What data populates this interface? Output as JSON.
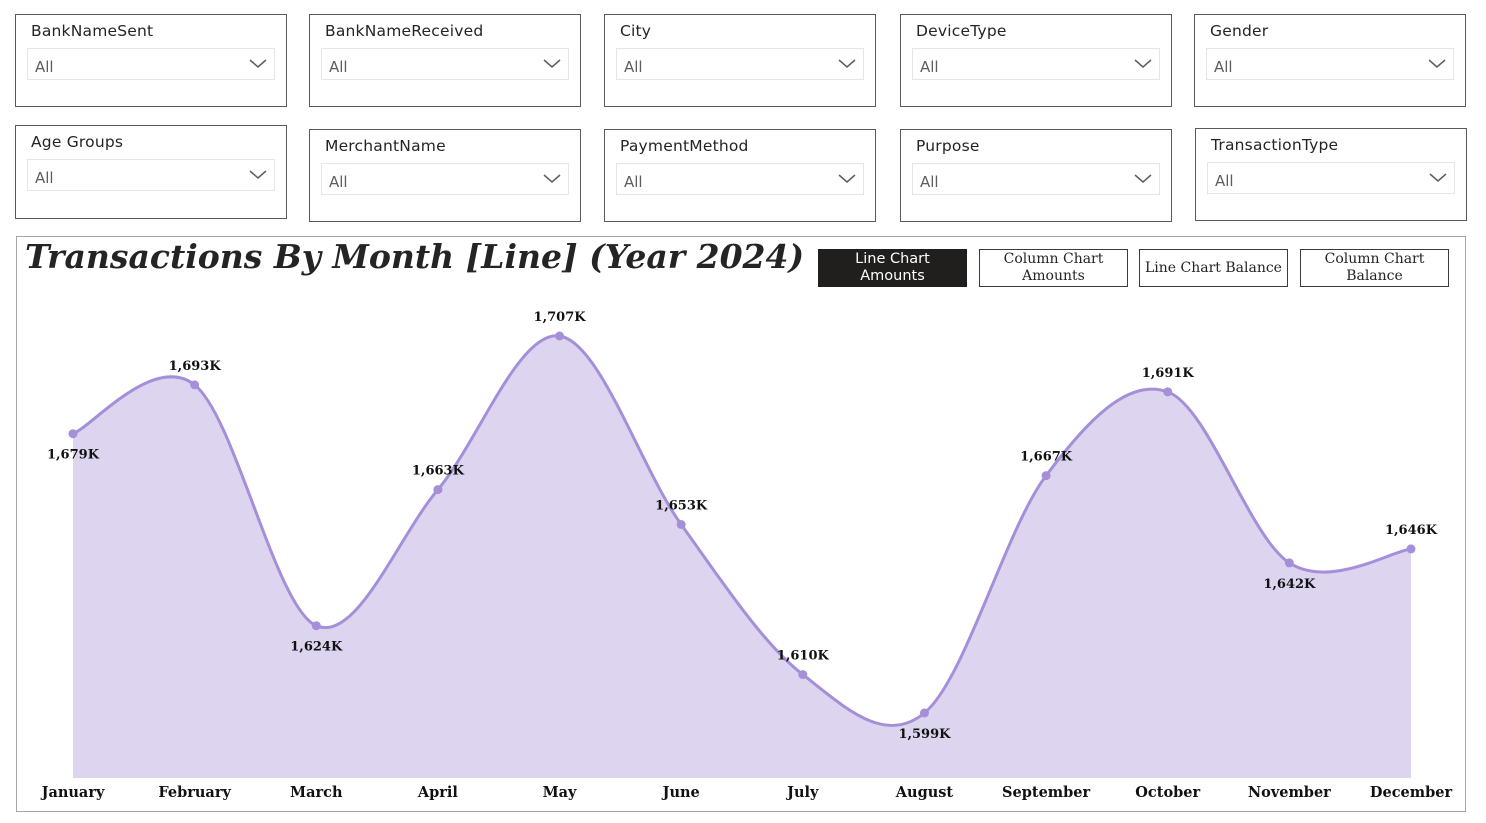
{
  "filters": {
    "row1": [
      {
        "id": "bank-name-sent",
        "title": "BankNameSent",
        "value": "All"
      },
      {
        "id": "bank-name-received",
        "title": "BankNameReceived",
        "value": "All"
      },
      {
        "id": "city",
        "title": "City",
        "value": "All"
      },
      {
        "id": "device-type",
        "title": "DeviceType",
        "value": "All"
      },
      {
        "id": "gender",
        "title": "Gender",
        "value": "All"
      }
    ],
    "row2": [
      {
        "id": "age-groups",
        "title": "Age Groups",
        "value": "All"
      },
      {
        "id": "merchant-name",
        "title": "MerchantName",
        "value": "All"
      },
      {
        "id": "payment-method",
        "title": "PaymentMethod",
        "value": "All"
      },
      {
        "id": "purpose",
        "title": "Purpose",
        "value": "All"
      },
      {
        "id": "transaction-type",
        "title": "TransactionType",
        "value": "All"
      }
    ]
  },
  "chart_panel": {
    "title": "Transactions By Month [Line] (Year 2024)",
    "buttons": {
      "line_amounts": "Line Chart Amounts",
      "column_amounts": "Column Chart Amounts",
      "line_balance": "Line Chart Balance",
      "column_balance": "Column Chart Balance"
    },
    "active_button": "line_amounts"
  },
  "colors": {
    "line": "#a48fd8",
    "area": "#ddd4f0",
    "active_button_bg": "#201f1e"
  },
  "icons": {
    "dropdown": "chevron-down-icon"
  },
  "chart_data": {
    "type": "area",
    "categories": [
      "January",
      "February",
      "March",
      "April",
      "May",
      "June",
      "July",
      "August",
      "September",
      "October",
      "November",
      "December"
    ],
    "series": [
      {
        "values": [
          1679,
          1693,
          1624,
          1663,
          1707,
          1653,
          1610,
          1599,
          1667,
          1691,
          1642,
          1646
        ],
        "labels": [
          "1,679K",
          "1,693K",
          "1,624K",
          "1,663K",
          "1,707K",
          "1,653K",
          "1,610K",
          "1,599K",
          "1,667K",
          "1,691K",
          "1,642K",
          "1,646K"
        ]
      }
    ],
    "unit": "K",
    "xlabel": "",
    "ylabel": "",
    "grid": false,
    "legend": "none",
    "smooth": true
  }
}
